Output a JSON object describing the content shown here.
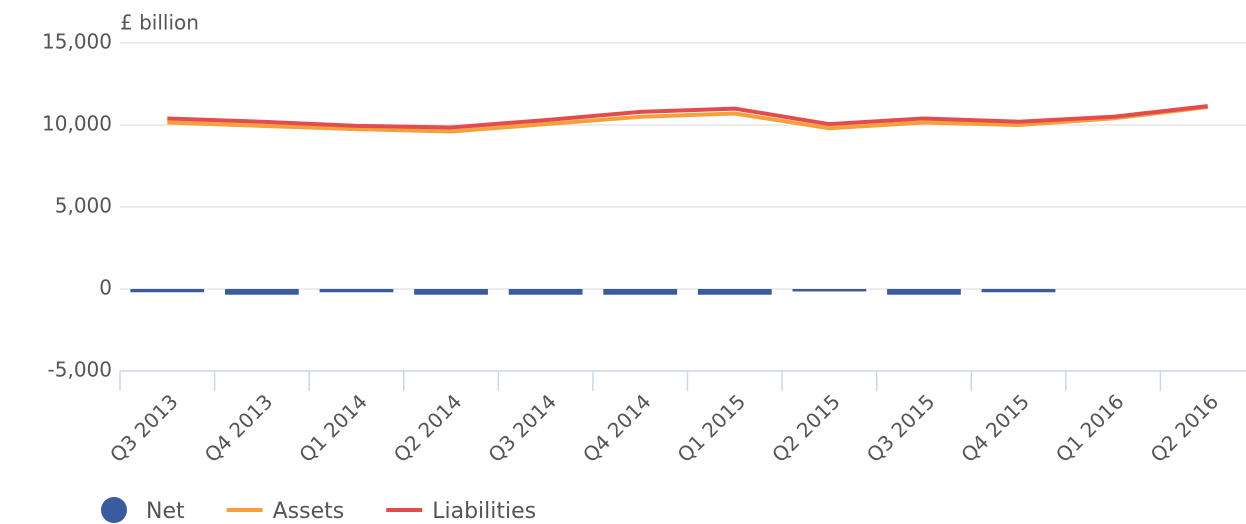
{
  "chart_data": {
    "type": "combo",
    "y_label": "£ billion",
    "categories": [
      "Q3 2013",
      "Q4 2013",
      "Q1 2014",
      "Q2 2014",
      "Q3 2014",
      "Q4 2014",
      "Q1 2015",
      "Q2 2015",
      "Q3 2015",
      "Q4 2015",
      "Q1 2016",
      "Q2 2016"
    ],
    "series": [
      {
        "name": "Net",
        "type": "bar",
        "color": "#3a5ba0",
        "values": [
          -200,
          -350,
          -200,
          -350,
          -350,
          -350,
          -350,
          -150,
          -350,
          -200,
          null,
          null
        ]
      },
      {
        "name": "Assets",
        "type": "line",
        "color": "#f5a03c",
        "values": [
          10150,
          9950,
          9750,
          9600,
          10050,
          10500,
          10700,
          9800,
          10150,
          10000,
          10400,
          11100
        ]
      },
      {
        "name": "Liabilities",
        "type": "line",
        "color": "#e24c4c",
        "values": [
          10400,
          10200,
          9950,
          9850,
          10300,
          10800,
          11000,
          10050,
          10400,
          10200,
          10500,
          11150
        ]
      }
    ],
    "ylim": [
      -5000,
      15000
    ],
    "yticks": [
      {
        "value": -5000,
        "label": "-5,000"
      },
      0,
      {
        "value": 5000,
        "label": "5,000"
      },
      {
        "value": 10000,
        "label": "10,000"
      },
      {
        "value": 15000,
        "label": "15,000"
      }
    ],
    "grid": true
  }
}
